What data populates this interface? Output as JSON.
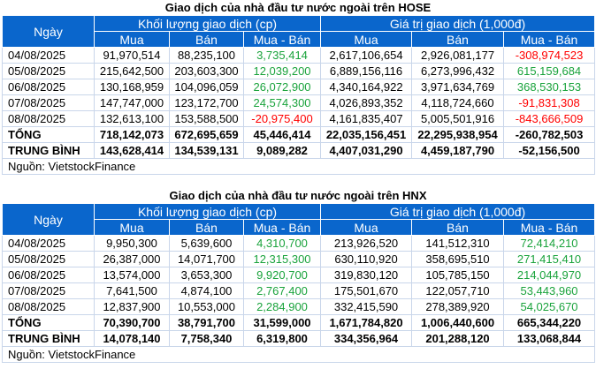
{
  "headers": {
    "date": "Ngày",
    "volume": "Khối lượng giao dịch (cp)",
    "value": "Giá trị giao dịch (1,000đ)",
    "buy": "Mua",
    "sell": "Bán",
    "net": "Mua - Bán"
  },
  "tables": [
    {
      "title": "Giao dịch của nhà đầu tư nước ngoài trên HOSE",
      "rows": [
        [
          "04/08/2025",
          "91,970,514",
          "88,235,100",
          "3,735,414",
          "2,617,106,654",
          "2,926,081,177",
          "-308,974,523"
        ],
        [
          "05/08/2025",
          "215,642,500",
          "203,603,300",
          "12,039,200",
          "6,889,156,116",
          "6,273,996,432",
          "615,159,684"
        ],
        [
          "06/08/2025",
          "130,168,959",
          "104,096,059",
          "26,072,900",
          "4,340,164,922",
          "3,971,634,769",
          "368,530,153"
        ],
        [
          "07/08/2025",
          "147,747,000",
          "123,172,700",
          "24,574,300",
          "4,026,893,352",
          "4,118,724,660",
          "-91,831,308"
        ],
        [
          "08/08/2025",
          "132,613,100",
          "153,588,500",
          "-20,975,400",
          "4,161,835,407",
          "5,005,501,916",
          "-843,666,509"
        ]
      ],
      "total": [
        "TỔNG",
        "718,142,073",
        "672,695,659",
        "45,446,414",
        "22,035,156,451",
        "22,295,938,954",
        "-260,782,503"
      ],
      "average": [
        "TRUNG BÌNH",
        "143,628,414",
        "134,539,131",
        "9,089,282",
        "4,407,031,290",
        "4,459,187,790",
        "-52,156,500"
      ],
      "source": "Nguồn: VietstockFinance"
    },
    {
      "title": "Giao dịch của nhà đầu tư nước ngoài trên HNX",
      "rows": [
        [
          "04/08/2025",
          "9,950,300",
          "5,639,600",
          "4,310,700",
          "213,926,520",
          "141,512,310",
          "72,414,210"
        ],
        [
          "05/08/2025",
          "26,387,000",
          "14,071,700",
          "12,315,300",
          "630,110,920",
          "358,695,510",
          "271,415,410"
        ],
        [
          "06/08/2025",
          "13,574,000",
          "3,653,300",
          "9,920,700",
          "319,830,120",
          "105,785,150",
          "214,044,970"
        ],
        [
          "07/08/2025",
          "7,641,500",
          "4,874,100",
          "2,767,400",
          "175,501,670",
          "122,057,710",
          "53,443,960"
        ],
        [
          "08/08/2025",
          "12,837,900",
          "10,553,000",
          "2,284,900",
          "332,415,590",
          "278,389,920",
          "54,025,670"
        ]
      ],
      "total": [
        "TỔNG",
        "70,390,700",
        "38,791,700",
        "31,599,000",
        "1,671,784,820",
        "1,006,440,600",
        "665,344,220"
      ],
      "average": [
        "TRUNG BÌNH",
        "14,078,140",
        "7,758,340",
        "6,319,800",
        "334,356,964",
        "201,288,120",
        "133,068,844"
      ],
      "source": "Nguồn: VietstockFinance"
    }
  ],
  "colors": {
    "header": "#0a66cc",
    "positive": "#1aa33c",
    "negative": "#ff0000"
  }
}
